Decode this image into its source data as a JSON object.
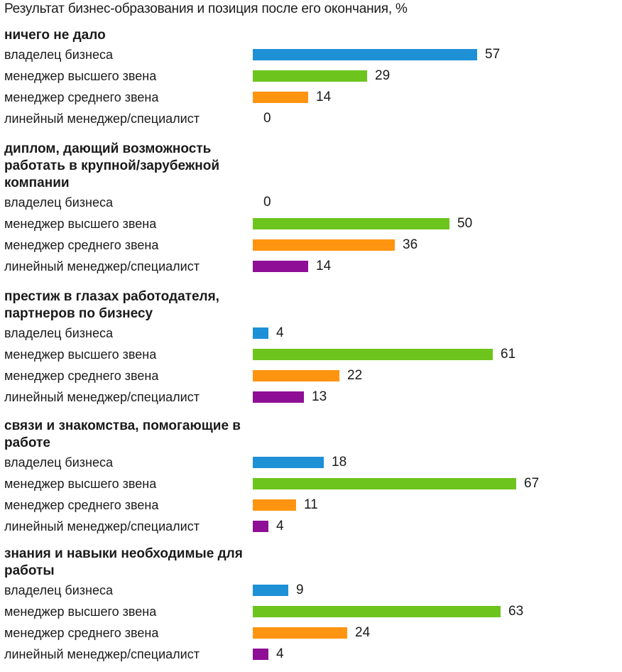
{
  "chart_data": {
    "type": "bar",
    "orientation": "horizontal",
    "title": "Результат бизнес-образования и позиция после его окончания, %",
    "categories": [
      "владелец бизнеса",
      "менеджер высшего звена",
      "менеджер среднего звена",
      "линейный менеджер/специалист"
    ],
    "category_colors": [
      "#1e90d6",
      "#6cc41c",
      "#ff9410",
      "#8e0f95"
    ],
    "xlim": [
      0,
      67
    ],
    "groups": [
      {
        "title": "ничего не дало",
        "values": [
          57,
          29,
          14,
          0
        ]
      },
      {
        "title": "диплом, дающий возможность работать в крупной/зарубежной компании",
        "values": [
          0,
          50,
          36,
          14
        ]
      },
      {
        "title": "престиж в глазах работодателя, партнеров по бизнесу",
        "values": [
          4,
          61,
          22,
          13
        ]
      },
      {
        "title": "связи и знакомства, помогающие в работе",
        "values": [
          18,
          67,
          11,
          4
        ]
      },
      {
        "title": "знания и навыки необходимые для работы",
        "values": [
          9,
          63,
          24,
          4
        ]
      }
    ]
  }
}
